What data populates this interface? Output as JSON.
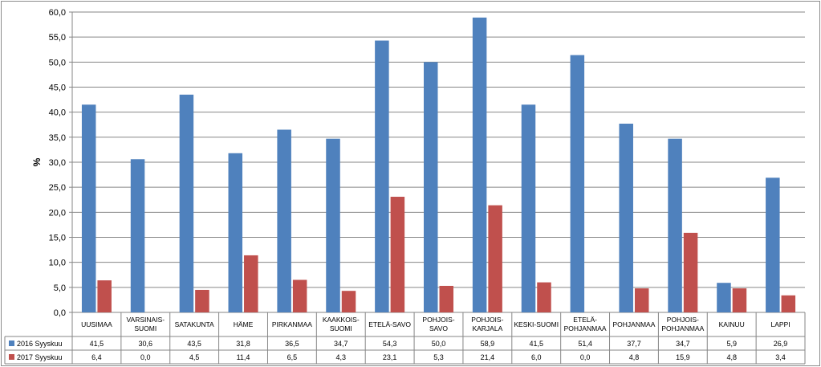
{
  "chart_data": {
    "type": "bar",
    "title": "",
    "xlabel": "",
    "ylabel": "%",
    "ylim": [
      0,
      60
    ],
    "yticks": [
      "0,0",
      "5,0",
      "10,0",
      "15,0",
      "20,0",
      "25,0",
      "30,0",
      "35,0",
      "40,0",
      "45,0",
      "50,0",
      "55,0",
      "60,0"
    ],
    "grid": true,
    "legend": "data-table-left",
    "categories": [
      [
        "UUSIMAA"
      ],
      [
        "VARSINAIS-",
        "SUOMI"
      ],
      [
        "SATAKUNTA"
      ],
      [
        "HÄME"
      ],
      [
        "PIRKANMAA"
      ],
      [
        "KAAKKOIS-",
        "SUOMI"
      ],
      [
        "ETELÄ-SAVO"
      ],
      [
        "POHJOIS-",
        "SAVO"
      ],
      [
        "POHJOIS-",
        "KARJALA"
      ],
      [
        "KESKI-SUOMI"
      ],
      [
        "ETELÄ-",
        "POHJANMAA"
      ],
      [
        "POHJANMAA"
      ],
      [
        "POHJOIS-",
        "POHJANMAA"
      ],
      [
        "KAINUU"
      ],
      [
        "LAPPI"
      ]
    ],
    "series": [
      {
        "name": "2016 Syyskuu",
        "color": "#4f81bd",
        "values": [
          41.5,
          30.6,
          43.5,
          31.8,
          36.5,
          34.7,
          54.3,
          50.0,
          58.9,
          41.5,
          51.4,
          37.7,
          34.7,
          5.9,
          26.9
        ],
        "labels": [
          "41,5",
          "30,6",
          "43,5",
          "31,8",
          "36,5",
          "34,7",
          "54,3",
          "50,0",
          "58,9",
          "41,5",
          "51,4",
          "37,7",
          "34,7",
          "5,9",
          "26,9"
        ]
      },
      {
        "name": "2017 Syyskuu",
        "color": "#c0504d",
        "values": [
          6.4,
          0.0,
          4.5,
          11.4,
          6.5,
          4.3,
          23.1,
          5.3,
          21.4,
          6.0,
          0.0,
          4.8,
          15.9,
          4.8,
          3.4
        ],
        "labels": [
          "6,4",
          "0,0",
          "4,5",
          "11,4",
          "6,5",
          "4,3",
          "23,1",
          "5,3",
          "21,4",
          "6,0",
          "0,0",
          "4,8",
          "15,9",
          "4,8",
          "3,4"
        ]
      }
    ]
  }
}
